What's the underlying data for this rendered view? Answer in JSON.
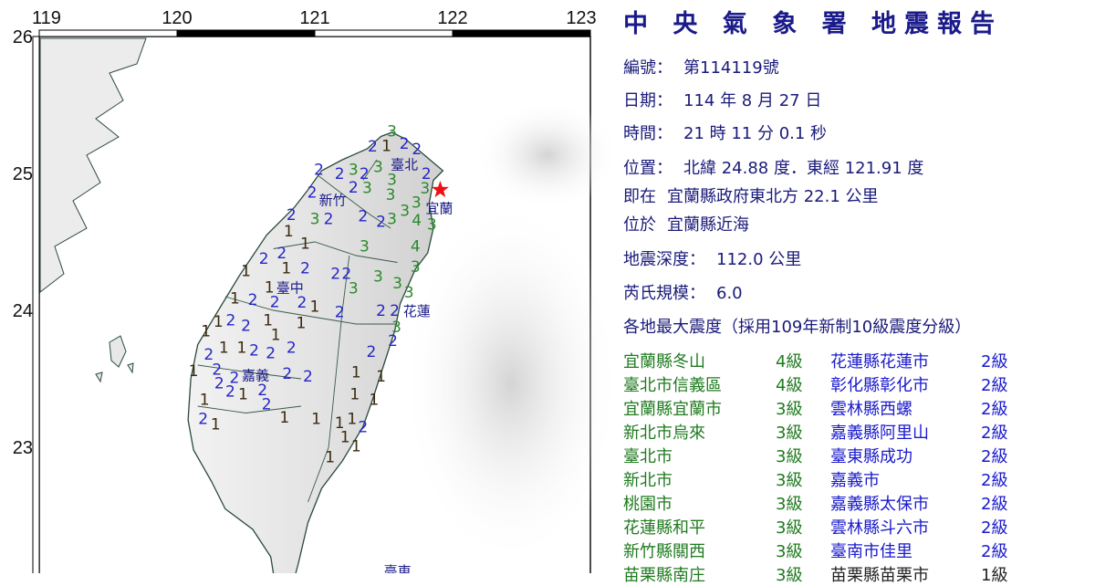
{
  "map": {
    "lon_ticks": [
      119,
      120,
      121,
      122,
      123
    ],
    "lat_ticks": [
      26,
      25,
      24,
      23
    ],
    "epicenter": {
      "lon": 121.91,
      "lat": 24.88,
      "icon": "red-star-icon",
      "color": "#ee1111"
    },
    "intensity_colors": {
      "1": "#3a2a10",
      "2": "#2525c8",
      "3": "#2a8a2a",
      "4": "#2a8a2a"
    },
    "city_labels": [
      {
        "name": "臺北",
        "lon": 121.65,
        "lat": 25.07
      },
      {
        "name": "宜蘭",
        "lon": 121.89,
        "lat": 24.79
      },
      {
        "name": "新竹",
        "lon": 121.13,
        "lat": 24.81
      },
      {
        "name": "臺中",
        "lon": 120.82,
        "lat": 24.17
      },
      {
        "name": "花蓮",
        "lon": 121.74,
        "lat": 24.0
      },
      {
        "name": "嘉義",
        "lon": 120.57,
        "lat": 23.53
      },
      {
        "name": "臺東",
        "lon": 121.6,
        "lat": 22.1
      }
    ],
    "stations": [
      {
        "v": "3",
        "lon": 121.56,
        "lat": 25.31
      },
      {
        "v": "1",
        "lon": 121.5,
        "lat": 25.21
      },
      {
        "v": "2",
        "lon": 121.42,
        "lat": 25.2
      },
      {
        "v": "2",
        "lon": 121.63,
        "lat": 25.22
      },
      {
        "v": "2",
        "lon": 121.74,
        "lat": 25.18
      },
      {
        "v": "2",
        "lon": 121.03,
        "lat": 25.03
      },
      {
        "v": "2",
        "lon": 121.18,
        "lat": 25.0
      },
      {
        "v": "3",
        "lon": 121.28,
        "lat": 25.03
      },
      {
        "v": "2",
        "lon": 121.34,
        "lat": 25.0
      },
      {
        "v": "3",
        "lon": 121.46,
        "lat": 25.05
      },
      {
        "v": "3",
        "lon": 121.54,
        "lat": 25.01
      },
      {
        "v": "2",
        "lon": 121.79,
        "lat": 25.0
      },
      {
        "v": "3",
        "lon": 121.36,
        "lat": 24.95
      },
      {
        "v": "2",
        "lon": 121.28,
        "lat": 24.9
      },
      {
        "v": "3",
        "lon": 121.53,
        "lat": 24.9
      },
      {
        "v": "3",
        "lon": 121.82,
        "lat": 24.9
      },
      {
        "v": "2",
        "lon": 121.0,
        "lat": 24.87
      },
      {
        "v": "3",
        "lon": 121.73,
        "lat": 24.81
      },
      {
        "v": "3",
        "lon": 121.66,
        "lat": 24.75
      },
      {
        "v": "4",
        "lon": 121.72,
        "lat": 24.66
      },
      {
        "v": "3",
        "lon": 121.85,
        "lat": 24.63
      },
      {
        "v": "2",
        "lon": 120.83,
        "lat": 24.7
      },
      {
        "v": "3",
        "lon": 121.0,
        "lat": 24.67
      },
      {
        "v": "2",
        "lon": 121.1,
        "lat": 24.67
      },
      {
        "v": "2",
        "lon": 121.35,
        "lat": 24.69
      },
      {
        "v": "2",
        "lon": 121.48,
        "lat": 24.65
      },
      {
        "v": "3",
        "lon": 121.56,
        "lat": 24.67
      },
      {
        "v": "1",
        "lon": 120.81,
        "lat": 24.58
      },
      {
        "v": "1",
        "lon": 120.93,
        "lat": 24.49
      },
      {
        "v": "3",
        "lon": 121.36,
        "lat": 24.47
      },
      {
        "v": "4",
        "lon": 121.73,
        "lat": 24.47
      },
      {
        "v": "2",
        "lon": 120.63,
        "lat": 24.38
      },
      {
        "v": "2",
        "lon": 120.76,
        "lat": 24.42
      },
      {
        "v": "1",
        "lon": 120.78,
        "lat": 24.35
      },
      {
        "v": "3",
        "lon": 121.73,
        "lat": 24.32
      },
      {
        "v": "1",
        "lon": 120.5,
        "lat": 24.29
      },
      {
        "v": "2",
        "lon": 120.93,
        "lat": 24.31
      },
      {
        "v": "2",
        "lon": 121.15,
        "lat": 24.27
      },
      {
        "v": "2",
        "lon": 121.23,
        "lat": 24.27
      },
      {
        "v": "3",
        "lon": 121.46,
        "lat": 24.25
      },
      {
        "v": "1",
        "lon": 120.67,
        "lat": 24.17
      },
      {
        "v": "3",
        "lon": 121.26,
        "lat": 24.17
      },
      {
        "v": "3",
        "lon": 121.6,
        "lat": 24.2
      },
      {
        "v": "1",
        "lon": 120.42,
        "lat": 24.09
      },
      {
        "v": "2",
        "lon": 120.55,
        "lat": 24.08
      },
      {
        "v": "2",
        "lon": 120.69,
        "lat": 24.07
      },
      {
        "v": "2",
        "lon": 120.9,
        "lat": 24.08
      },
      {
        "v": "1",
        "lon": 120.94,
        "lat": 24.03
      },
      {
        "v": "2",
        "lon": 121.18,
        "lat": 23.99
      },
      {
        "v": "2",
        "lon": 121.48,
        "lat": 24.0
      },
      {
        "v": "2",
        "lon": 121.58,
        "lat": 24.0
      },
      {
        "v": "3",
        "lon": 121.61,
        "lat": 24.1
      },
      {
        "v": "1",
        "lon": 120.3,
        "lat": 23.92
      },
      {
        "v": "2",
        "lon": 120.37,
        "lat": 23.93
      },
      {
        "v": "1",
        "lon": 120.66,
        "lat": 23.93
      },
      {
        "v": "1",
        "lon": 120.69,
        "lat": 23.85
      },
      {
        "v": "2",
        "lon": 120.5,
        "lat": 23.89
      },
      {
        "v": "1",
        "lon": 120.9,
        "lat": 23.91
      },
      {
        "v": "3",
        "lon": 121.58,
        "lat": 23.92
      },
      {
        "v": "1",
        "lon": 120.21,
        "lat": 23.85
      },
      {
        "v": "2",
        "lon": 121.56,
        "lat": 23.8
      },
      {
        "v": "1",
        "lon": 120.34,
        "lat": 23.73
      },
      {
        "v": "1",
        "lon": 120.47,
        "lat": 23.73
      },
      {
        "v": "2",
        "lon": 120.23,
        "lat": 23.68
      },
      {
        "v": "2",
        "lon": 120.56,
        "lat": 23.71
      },
      {
        "v": "2",
        "lon": 120.68,
        "lat": 23.69
      },
      {
        "v": "2",
        "lon": 120.83,
        "lat": 23.73
      },
      {
        "v": "2",
        "lon": 121.41,
        "lat": 23.7
      },
      {
        "v": "1",
        "lon": 120.12,
        "lat": 23.56
      },
      {
        "v": "2",
        "lon": 120.29,
        "lat": 23.57
      },
      {
        "v": "2",
        "lon": 120.3,
        "lat": 23.49
      },
      {
        "v": "2",
        "lon": 120.47,
        "lat": 23.53
      },
      {
        "v": "2",
        "lon": 120.62,
        "lat": 23.48
      },
      {
        "v": "2",
        "lon": 120.8,
        "lat": 23.54
      },
      {
        "v": "2",
        "lon": 120.95,
        "lat": 23.52
      },
      {
        "v": "1",
        "lon": 121.3,
        "lat": 23.55
      },
      {
        "v": "1",
        "lon": 121.48,
        "lat": 23.52
      },
      {
        "v": "1",
        "lon": 120.2,
        "lat": 23.35
      },
      {
        "v": "2",
        "lon": 120.38,
        "lat": 23.43
      },
      {
        "v": "1",
        "lon": 120.42,
        "lat": 23.39
      },
      {
        "v": "2",
        "lon": 120.63,
        "lat": 23.37
      },
      {
        "v": "1",
        "lon": 121.29,
        "lat": 23.39
      },
      {
        "v": "1",
        "lon": 121.43,
        "lat": 23.35
      },
      {
        "v": "2",
        "lon": 120.19,
        "lat": 23.21
      },
      {
        "v": "1",
        "lon": 120.26,
        "lat": 23.17
      },
      {
        "v": "1",
        "lon": 120.78,
        "lat": 23.22
      },
      {
        "v": "1",
        "lon": 121.01,
        "lat": 23.21
      },
      {
        "v": "1",
        "lon": 121.18,
        "lat": 23.18
      },
      {
        "v": "1",
        "lon": 121.27,
        "lat": 23.21
      },
      {
        "v": "1",
        "lon": 121.2,
        "lat": 23.13
      },
      {
        "v": "2",
        "lon": 121.35,
        "lat": 23.15
      },
      {
        "v": "1",
        "lon": 121.28,
        "lat": 23.01
      },
      {
        "v": "1",
        "lon": 121.11,
        "lat": 22.93
      }
    ]
  },
  "report": {
    "title": "中 央 氣 象 署 地震報告",
    "number_label": "編號：",
    "number_value": "第114119號",
    "date_label": "日期：",
    "date_value": "114 年 8 月 27 日",
    "time_label": "時間：",
    "time_value": "21 時 11 分 0.1 秒",
    "location_label": "位置：",
    "location_value": "北緯 24.88 度．東經 121.91 度",
    "relative_label": "即在",
    "relative_value": "宜蘭縣政府東北方 22.1 公里",
    "region_label": "位於",
    "region_value": "宜蘭縣近海",
    "depth_label": "地震深度：",
    "depth_value": "112.0 公里",
    "magnitude_label": "芮氏規模：",
    "magnitude_value": "6.0",
    "intensity_header": "各地最大震度（採用109年新制10級震度分級）",
    "colors": {
      "header": "#1a1a7a",
      "level_3_4": "#1f7a1f",
      "level_2": "#1a1acc",
      "level_1": "#222222"
    },
    "intensity_rows": [
      {
        "left_place": "宜蘭縣冬山",
        "left_level": "4級",
        "right_place": "花蓮縣花蓮市",
        "right_level": "2級"
      },
      {
        "left_place": "臺北市信義區",
        "left_level": "4級",
        "right_place": "彰化縣彰化市",
        "right_level": "2級"
      },
      {
        "left_place": "宜蘭縣宜蘭市",
        "left_level": "3級",
        "right_place": "雲林縣西螺",
        "right_level": "2級"
      },
      {
        "left_place": "新北市烏來",
        "left_level": "3級",
        "right_place": "嘉義縣阿里山",
        "right_level": "2級"
      },
      {
        "left_place": "臺北市",
        "left_level": "3級",
        "right_place": "臺東縣成功",
        "right_level": "2級"
      },
      {
        "left_place": "新北市",
        "left_level": "3級",
        "right_place": "嘉義市",
        "right_level": "2級"
      },
      {
        "left_place": "桃園市",
        "left_level": "3級",
        "right_place": "嘉義縣太保市",
        "right_level": "2級"
      },
      {
        "left_place": "花蓮縣和平",
        "left_level": "3級",
        "right_place": "雲林縣斗六市",
        "right_level": "2級"
      },
      {
        "left_place": "新竹縣關西",
        "left_level": "3級",
        "right_place": "臺南市佳里",
        "right_level": "2級"
      },
      {
        "left_place": "苗栗縣南庄",
        "left_level": "3級",
        "right_place": "苗栗縣苗栗市",
        "right_level": "1級"
      }
    ]
  }
}
